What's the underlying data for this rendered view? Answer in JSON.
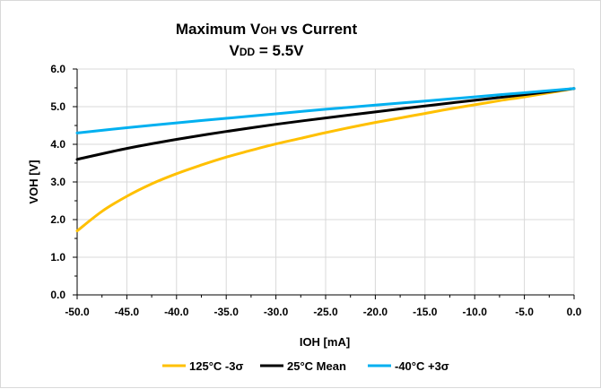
{
  "chart_data": {
    "type": "line",
    "title_line1": {
      "prefix": "Maximum V",
      "sub": "OH",
      "suffix": " vs Current"
    },
    "title_line2": {
      "prefix": "V",
      "sub": "DD",
      "suffix": " = 5.5V"
    },
    "xlabel": "IOH [mA]",
    "ylabel": "VOH [V]",
    "xlim": [
      -50,
      0
    ],
    "ylim": [
      0,
      6
    ],
    "x_ticks": [
      "-50.0",
      "-45.0",
      "-40.0",
      "-35.0",
      "-30.0",
      "-25.0",
      "-20.0",
      "-15.0",
      "-10.0",
      "-5.0",
      "0.0"
    ],
    "y_ticks": [
      "0.0",
      "1.0",
      "2.0",
      "3.0",
      "4.0",
      "5.0",
      "6.0"
    ],
    "grid": true,
    "legend_position": "bottom",
    "series": [
      {
        "name": "125°C -3σ",
        "color": "#ffc000",
        "x": [
          -50,
          -47.5,
          -45,
          -42.5,
          -40,
          -37.5,
          -35,
          -32.5,
          -30,
          -27.5,
          -25,
          -22.5,
          -20,
          -17.5,
          -15,
          -12.5,
          -10,
          -7.5,
          -5,
          -2.5,
          0
        ],
        "y": [
          1.7,
          2.22,
          2.62,
          2.95,
          3.22,
          3.45,
          3.66,
          3.84,
          4.01,
          4.16,
          4.31,
          4.45,
          4.58,
          4.7,
          4.82,
          4.94,
          5.05,
          5.16,
          5.26,
          5.37,
          5.48
        ]
      },
      {
        "name": "25°C Mean",
        "color": "#000000",
        "x": [
          -50,
          -45,
          -40,
          -35,
          -30,
          -25,
          -20,
          -15,
          -10,
          -5,
          0
        ],
        "y": [
          3.6,
          3.89,
          4.13,
          4.34,
          4.53,
          4.7,
          4.86,
          5.02,
          5.17,
          5.32,
          5.48
        ]
      },
      {
        "name": "-40°C +3σ",
        "color": "#00b0f0",
        "x": [
          -50,
          -45,
          -40,
          -35,
          -30,
          -25,
          -20,
          -15,
          -10,
          -5,
          0
        ],
        "y": [
          4.3,
          4.44,
          4.57,
          4.69,
          4.81,
          4.93,
          5.04,
          5.15,
          5.26,
          5.37,
          5.48
        ]
      }
    ]
  }
}
